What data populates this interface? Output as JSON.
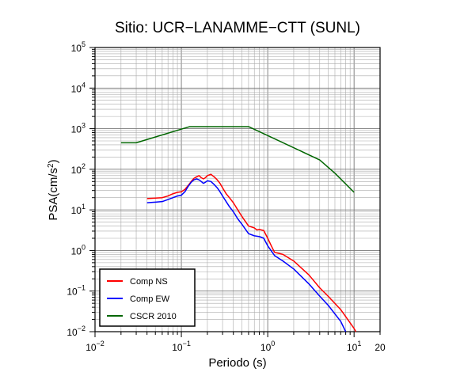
{
  "chart_data": {
    "type": "line",
    "title": "Sitio: UCR−LANAMME−CTT (SUNL)",
    "xlabel": "Periodo (s)",
    "ylabel": {
      "base": "PSA(cm/s",
      "sup": "2",
      "end": ")"
    },
    "xscale": "log",
    "yscale": "log",
    "xlim": [
      0.01,
      20
    ],
    "ylim": [
      0.01,
      100000
    ],
    "grid": true,
    "legend_position": "bottom-left",
    "x_ticks": [
      {
        "base": "10",
        "exp": "−2"
      },
      {
        "base": "10",
        "exp": "−1"
      },
      {
        "base": "10",
        "exp": "0"
      },
      {
        "base": "10",
        "exp": "1"
      },
      {
        "base": "20",
        "exp": ""
      }
    ],
    "y_ticks": [
      {
        "base": "10",
        "exp": "−2"
      },
      {
        "base": "10",
        "exp": "−1"
      },
      {
        "base": "10",
        "exp": "0"
      },
      {
        "base": "10",
        "exp": "1"
      },
      {
        "base": "10",
        "exp": "2"
      },
      {
        "base": "10",
        "exp": "3"
      },
      {
        "base": "10",
        "exp": "4"
      },
      {
        "base": "10",
        "exp": "5"
      }
    ],
    "series": [
      {
        "name": "Comp NS",
        "color": "#ff0000",
        "points": [
          [
            0.04,
            19
          ],
          [
            0.05,
            19.5
          ],
          [
            0.06,
            20
          ],
          [
            0.07,
            22
          ],
          [
            0.08,
            25
          ],
          [
            0.09,
            27
          ],
          [
            0.1,
            28
          ],
          [
            0.11,
            32
          ],
          [
            0.12,
            40
          ],
          [
            0.13,
            50
          ],
          [
            0.14,
            60
          ],
          [
            0.15,
            65
          ],
          [
            0.16,
            70
          ],
          [
            0.17,
            62
          ],
          [
            0.18,
            58
          ],
          [
            0.19,
            62
          ],
          [
            0.2,
            70
          ],
          [
            0.22,
            75
          ],
          [
            0.24,
            65
          ],
          [
            0.26,
            55
          ],
          [
            0.28,
            45
          ],
          [
            0.3,
            35
          ],
          [
            0.33,
            25
          ],
          [
            0.36,
            20
          ],
          [
            0.4,
            15
          ],
          [
            0.45,
            10
          ],
          [
            0.5,
            7
          ],
          [
            0.6,
            4
          ],
          [
            0.7,
            3.6
          ],
          [
            0.75,
            3.2
          ],
          [
            0.8,
            3.3
          ],
          [
            0.9,
            3.1
          ],
          [
            1.0,
            2.0
          ],
          [
            1.1,
            1.3
          ],
          [
            1.2,
            0.9
          ],
          [
            1.5,
            0.8
          ],
          [
            2.0,
            0.55
          ],
          [
            3.0,
            0.25
          ],
          [
            4.0,
            0.12
          ],
          [
            5.0,
            0.075
          ],
          [
            7.0,
            0.035
          ],
          [
            10.0,
            0.012
          ],
          [
            10.5,
            0.01
          ]
        ]
      },
      {
        "name": "Comp EW",
        "color": "#0000ff",
        "points": [
          [
            0.04,
            15
          ],
          [
            0.05,
            15.5
          ],
          [
            0.06,
            16
          ],
          [
            0.07,
            18
          ],
          [
            0.08,
            20
          ],
          [
            0.09,
            22
          ],
          [
            0.1,
            23
          ],
          [
            0.11,
            28
          ],
          [
            0.12,
            38
          ],
          [
            0.13,
            48
          ],
          [
            0.14,
            55
          ],
          [
            0.15,
            58
          ],
          [
            0.16,
            55
          ],
          [
            0.17,
            50
          ],
          [
            0.18,
            45
          ],
          [
            0.19,
            48
          ],
          [
            0.2,
            52
          ],
          [
            0.22,
            50
          ],
          [
            0.24,
            42
          ],
          [
            0.26,
            35
          ],
          [
            0.28,
            28
          ],
          [
            0.3,
            22
          ],
          [
            0.33,
            16
          ],
          [
            0.36,
            12
          ],
          [
            0.4,
            9
          ],
          [
            0.45,
            6
          ],
          [
            0.5,
            4.5
          ],
          [
            0.6,
            2.6
          ],
          [
            0.7,
            2.3
          ],
          [
            0.8,
            2.2
          ],
          [
            0.9,
            2.0
          ],
          [
            1.0,
            1.3
          ],
          [
            1.2,
            0.75
          ],
          [
            1.5,
            0.55
          ],
          [
            2.0,
            0.35
          ],
          [
            3.0,
            0.15
          ],
          [
            4.0,
            0.075
          ],
          [
            5.0,
            0.045
          ],
          [
            7.0,
            0.018
          ],
          [
            8.0,
            0.01
          ]
        ]
      },
      {
        "name": "CSCR 2010",
        "color": "#006600",
        "points": [
          [
            0.02,
            450
          ],
          [
            0.03,
            450
          ],
          [
            0.125,
            1125
          ],
          [
            0.6,
            1125
          ],
          [
            4.0,
            170
          ],
          [
            6.0,
            80
          ],
          [
            10.0,
            27
          ]
        ]
      }
    ]
  }
}
